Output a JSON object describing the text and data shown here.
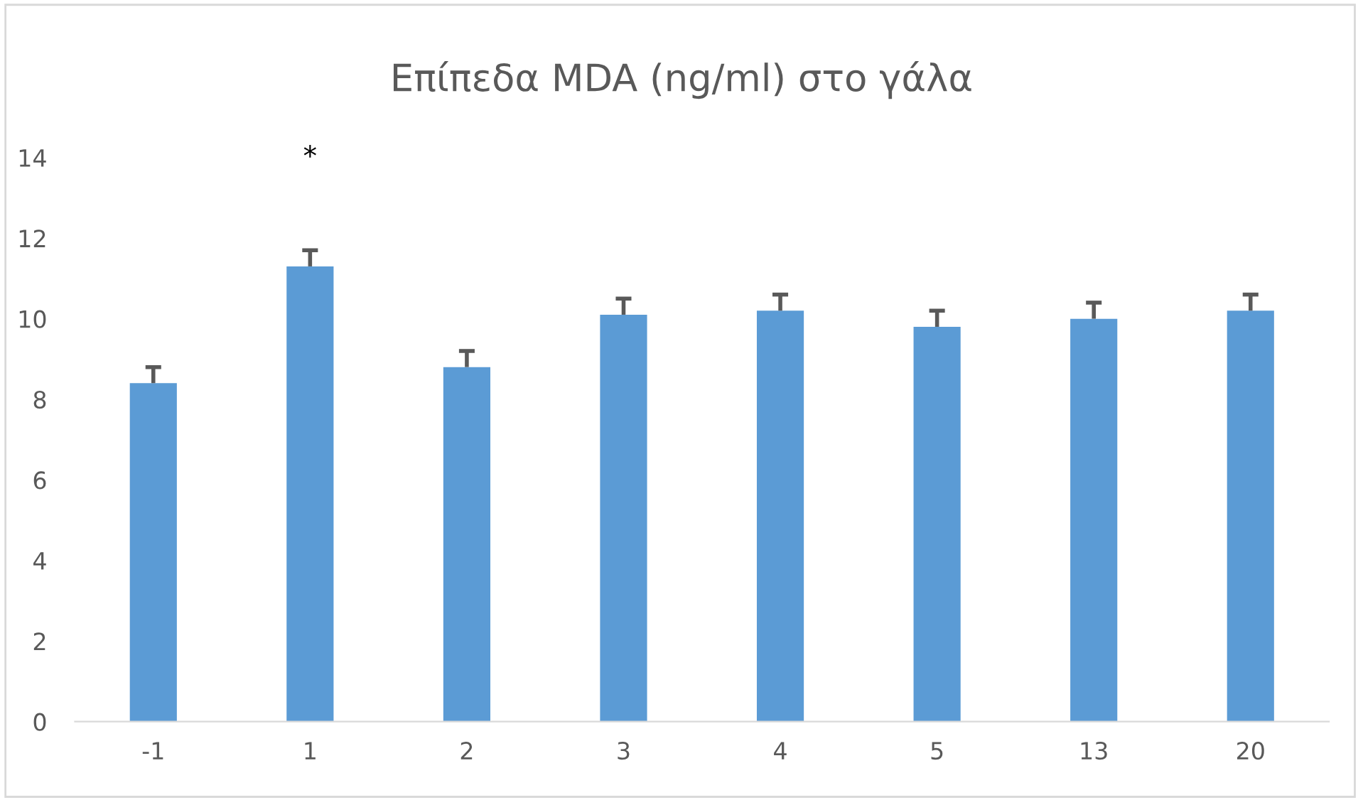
{
  "chart_data": {
    "type": "bar",
    "title": "Επίπεδα MDA (ng/ml) στο γάλα",
    "categories": [
      "-1",
      "1",
      "2",
      "3",
      "4",
      "5",
      "13",
      "20"
    ],
    "series": [
      {
        "color": "#5b9bd5",
        "values": [
          8.4,
          11.3,
          8.8,
          10.1,
          10.2,
          9.8,
          10.0,
          10.2
        ],
        "errors": [
          [
            8.4,
            8.8
          ],
          [
            11.3,
            11.7
          ],
          [
            8.8,
            9.2
          ],
          [
            10.1,
            10.5
          ],
          [
            10.2,
            10.6
          ],
          [
            9.8,
            10.2
          ],
          [
            10.0,
            10.4
          ],
          [
            10.2,
            10.6
          ]
        ]
      }
    ],
    "ylim": [
      0,
      14
    ],
    "yticks": [
      0,
      2,
      4,
      6,
      8,
      10,
      12,
      14
    ],
    "grid": false,
    "annotations": [
      "*"
    ]
  }
}
